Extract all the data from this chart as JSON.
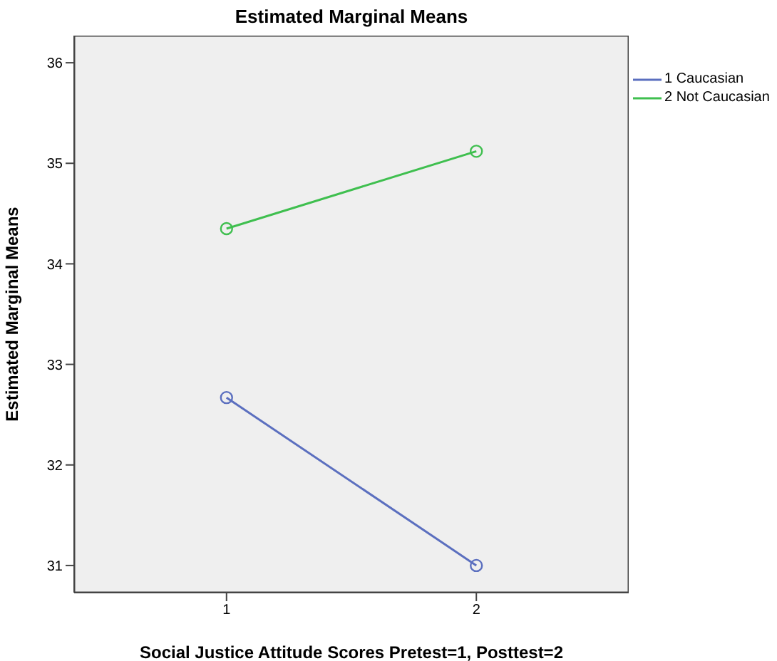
{
  "chart_data": {
    "type": "line",
    "title": "Estimated Marginal Means",
    "xlabel": "Social Justice Attitude Scores Pretest=1, Posttest=2",
    "ylabel": "Estimated Marginal Means",
    "categories": [
      "1",
      "2"
    ],
    "series": [
      {
        "name": "1 Caucasian",
        "color": "#5b6fbf",
        "values": [
          32.67,
          31.0
        ]
      },
      {
        "name": "2 Not Caucasian",
        "color": "#3fbf4f",
        "values": [
          34.35,
          35.12
        ]
      }
    ],
    "ylim": [
      30.73,
      36.27
    ],
    "yticks": [
      31,
      32,
      33,
      34,
      35,
      36
    ],
    "marker": "circle",
    "line_style": "solid",
    "grid": false,
    "legend": "top right"
  }
}
